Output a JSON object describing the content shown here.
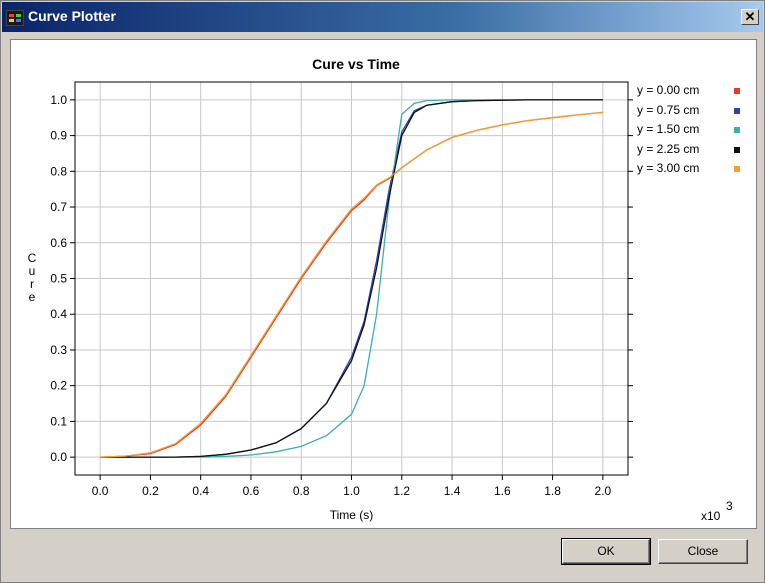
{
  "window": {
    "title": "Curve Plotter",
    "close_glyph": "✕"
  },
  "buttons": {
    "ok": "OK",
    "close": "Close"
  },
  "colors": {
    "series_red": "#e8392a",
    "series_blue": "#2a44b0",
    "series_teal": "#3ab0a8",
    "series_black": "#111111",
    "series_orange": "#f0a030",
    "grid": "#c8c8c8"
  },
  "chart_data": {
    "type": "line",
    "title": "Cure vs Time",
    "xlabel": "Time (s)",
    "ylabel": "Cure",
    "x_multiplier": "x10",
    "x_multiplier_exp": "3",
    "xlim": [
      -0.1,
      2.1
    ],
    "ylim": [
      -0.05,
      1.05
    ],
    "grid": true,
    "legend_position": "right",
    "x_ticks": [
      "0.0",
      "0.2",
      "0.4",
      "0.6",
      "0.8",
      "1.0",
      "1.2",
      "1.4",
      "1.6",
      "1.8",
      "2.0"
    ],
    "y_ticks": [
      "0.0",
      "0.1",
      "0.2",
      "0.3",
      "0.4",
      "0.5",
      "0.6",
      "0.7",
      "0.8",
      "0.9",
      "1.0"
    ],
    "x": [
      0.0,
      0.1,
      0.2,
      0.3,
      0.4,
      0.5,
      0.6,
      0.7,
      0.8,
      0.9,
      1.0,
      1.05,
      1.1,
      1.15,
      1.2,
      1.25,
      1.3,
      1.4,
      1.5,
      1.6,
      1.7,
      1.8,
      1.9,
      2.0
    ],
    "series": [
      {
        "name": "y = 0.00 cm",
        "color": "#e8392a",
        "values": [
          0.0,
          0.003,
          0.01,
          0.035,
          0.09,
          0.17,
          0.28,
          0.39,
          0.5,
          0.6,
          0.69,
          0.72,
          0.76,
          0.78,
          0.81,
          0.835,
          0.86,
          0.895,
          0.915,
          0.93,
          0.942,
          0.95,
          0.958,
          0.965
        ]
      },
      {
        "name": "y = 0.75 cm",
        "color": "#2a44b0",
        "values": [
          0.0,
          0.0,
          0.0,
          0.0,
          0.002,
          0.008,
          0.02,
          0.04,
          0.08,
          0.15,
          0.28,
          0.38,
          0.55,
          0.75,
          0.91,
          0.97,
          0.985,
          0.995,
          0.998,
          0.999,
          1.0,
          1.0,
          1.0,
          1.0
        ]
      },
      {
        "name": "y = 1.50 cm",
        "color": "#3ab0a8",
        "values": [
          0.0,
          0.0,
          0.0,
          0.0,
          0.0,
          0.002,
          0.006,
          0.015,
          0.03,
          0.06,
          0.12,
          0.2,
          0.4,
          0.72,
          0.96,
          0.99,
          0.998,
          1.0,
          1.0,
          1.0,
          1.0,
          1.0,
          1.0,
          1.0
        ]
      },
      {
        "name": "y = 2.25 cm",
        "color": "#111111",
        "values": [
          0.0,
          0.0,
          0.0,
          0.0,
          0.002,
          0.008,
          0.02,
          0.04,
          0.08,
          0.15,
          0.27,
          0.37,
          0.53,
          0.73,
          0.9,
          0.965,
          0.985,
          0.995,
          0.998,
          0.999,
          1.0,
          1.0,
          1.0,
          1.0
        ]
      },
      {
        "name": "y = 3.00 cm",
        "color": "#f0a030",
        "values": [
          0.0,
          0.003,
          0.012,
          0.038,
          0.095,
          0.175,
          0.285,
          0.395,
          0.505,
          0.605,
          0.695,
          0.725,
          0.762,
          0.782,
          0.81,
          0.835,
          0.86,
          0.895,
          0.915,
          0.93,
          0.942,
          0.95,
          0.958,
          0.965
        ]
      }
    ]
  }
}
